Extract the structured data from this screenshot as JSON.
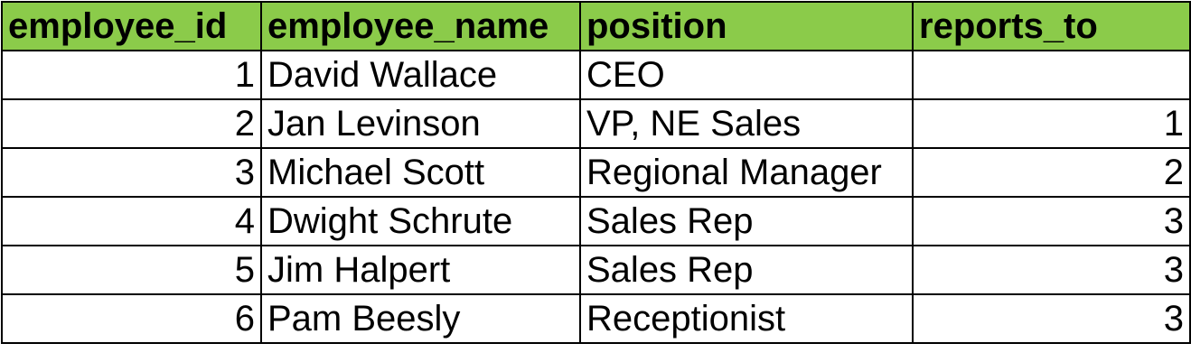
{
  "header": {
    "columns": [
      "employee_id",
      "employee_name",
      "position",
      "reports_to"
    ],
    "background_color": "#8bcb4a"
  },
  "rows": [
    {
      "employee_id": "1",
      "employee_name": "David Wallace",
      "position": "CEO",
      "reports_to": ""
    },
    {
      "employee_id": "2",
      "employee_name": "Jan Levinson",
      "position": "VP, NE Sales",
      "reports_to": "1"
    },
    {
      "employee_id": "3",
      "employee_name": "Michael Scott",
      "position": "Regional Manager",
      "reports_to": "2"
    },
    {
      "employee_id": "4",
      "employee_name": "Dwight Schrute",
      "position": "Sales Rep",
      "reports_to": "3"
    },
    {
      "employee_id": "5",
      "employee_name": "Jim Halpert",
      "position": "Sales Rep",
      "reports_to": "3"
    },
    {
      "employee_id": "6",
      "employee_name": "Pam Beesly",
      "position": "Receptionist",
      "reports_to": "3"
    }
  ]
}
